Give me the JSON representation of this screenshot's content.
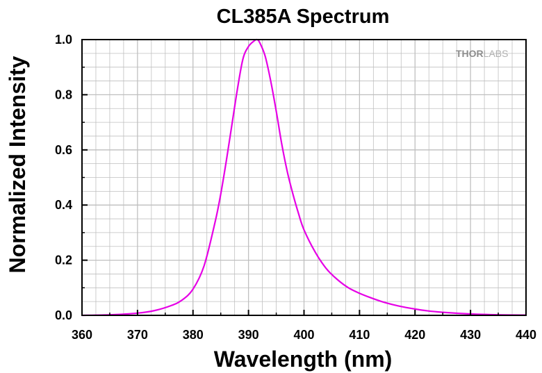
{
  "logo": {
    "part1": "THOR",
    "part2": "LABS"
  },
  "colors": {
    "series": "#e600e6",
    "grid": "#bfbfbf",
    "axis": "#000000"
  },
  "chart_data": {
    "type": "line",
    "title": "CL385A Spectrum",
    "xlabel": "Wavelength (nm)",
    "ylabel": "Normalized Intensity",
    "xlim": [
      360,
      440
    ],
    "ylim": [
      0,
      1.0
    ],
    "xticks": [
      "360",
      "370",
      "380",
      "390",
      "400",
      "410",
      "420",
      "430",
      "440"
    ],
    "yticks": [
      "0.0",
      "0.2",
      "0.4",
      "0.6",
      "0.8",
      "1.0"
    ],
    "grid": true,
    "series": [
      {
        "x": [
          360,
          365,
          370,
          373,
          376,
          378,
          380,
          382,
          384,
          385,
          386,
          387,
          388,
          389,
          390,
          391,
          391.5,
          392,
          393,
          394,
          395,
          396,
          397,
          398,
          399,
          400,
          402,
          404,
          406,
          408,
          410,
          412,
          414,
          416,
          418,
          420,
          422,
          425,
          430,
          435,
          440
        ],
        "y": [
          0.0,
          0.002,
          0.008,
          0.017,
          0.035,
          0.055,
          0.095,
          0.18,
          0.34,
          0.44,
          0.56,
          0.69,
          0.82,
          0.93,
          0.975,
          0.995,
          1.0,
          0.99,
          0.94,
          0.85,
          0.74,
          0.62,
          0.52,
          0.44,
          0.37,
          0.31,
          0.23,
          0.17,
          0.13,
          0.1,
          0.08,
          0.064,
          0.05,
          0.039,
          0.03,
          0.023,
          0.017,
          0.011,
          0.005,
          0.002,
          0.001
        ]
      }
    ]
  }
}
